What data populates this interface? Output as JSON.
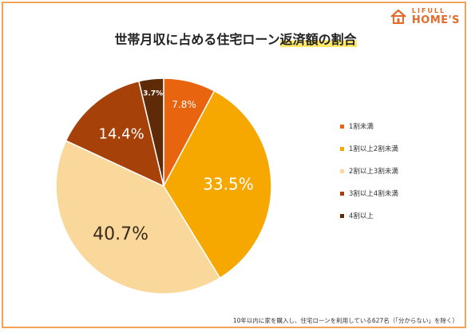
{
  "brand": {
    "line1": "LIFULL",
    "line2": "HOME'S",
    "color": "#e36b2b"
  },
  "title": {
    "main": "世帯月収に占める住宅ローン",
    "highlight": "返済額の割合"
  },
  "footnote": "10年以内に家を購入し、住宅ローンを利用している627名（「分からない」を除く）",
  "chart_data": {
    "type": "pie",
    "start": "12 o'clock",
    "direction": "clockwise",
    "slices": [
      {
        "label": "1割未満",
        "value": 7.8,
        "display": "7.8%",
        "color": "#e8640e"
      },
      {
        "label": "1割以上2割未満",
        "value": 33.5,
        "display": "33.5%",
        "color": "#f7a800"
      },
      {
        "label": "2割以上3割未満",
        "value": 40.7,
        "display": "40.7%",
        "color": "#fad89c"
      },
      {
        "label": "3割以上4割未満",
        "value": 14.4,
        "display": "14.4%",
        "color": "#a64109"
      },
      {
        "label": "4割以上",
        "value": 3.7,
        "display": "3.7%",
        "color": "#5e2a08"
      }
    ]
  }
}
